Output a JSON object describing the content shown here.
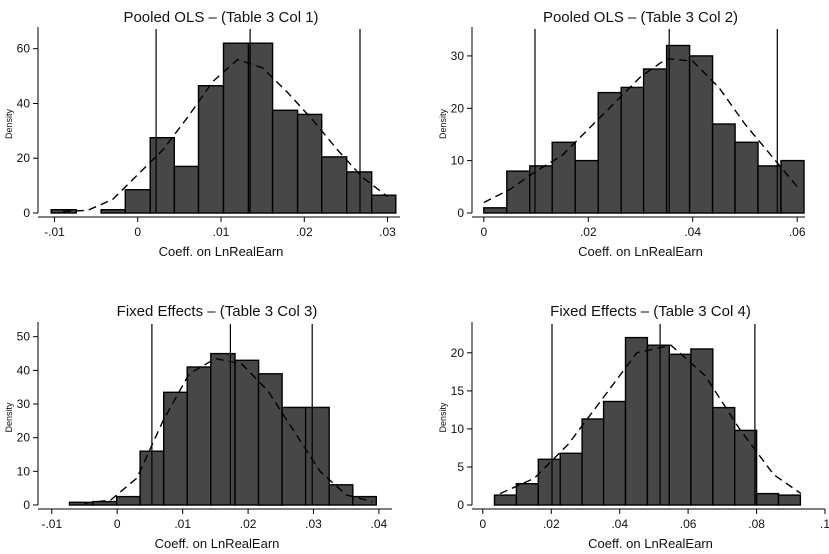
{
  "chart_data": [
    {
      "type": "bar",
      "title": "Pooled OLS – (Table 3 Col 1)",
      "xlabel": "Coeff. on LnRealEarn",
      "ylabel": "Density",
      "xlim": [
        -0.0115,
        0.0315
      ],
      "ylim": [
        0,
        65
      ],
      "xticks": [
        -0.01,
        0,
        0.01,
        0.02,
        0.03
      ],
      "xtick_labels": [
        "-.01",
        "0",
        ".01",
        ".02",
        ".03"
      ],
      "yticks": [
        0,
        20,
        40,
        60
      ],
      "ytick_labels": [
        "0",
        "20",
        "40",
        "60"
      ],
      "bin_edges": [
        -0.0104,
        -0.0074,
        -0.0044,
        -0.0015,
        0.0015,
        0.0044,
        0.0073,
        0.0103,
        0.0133,
        0.0162,
        0.0192,
        0.0221,
        0.0251,
        0.0281,
        0.031
      ],
      "values": [
        1.2,
        0,
        1.2,
        8.5,
        27.5,
        17,
        46.5,
        62,
        62,
        37.5,
        36,
        20.5,
        15,
        6.5
      ],
      "vlines": [
        0.0022,
        0.0135,
        0.0267
      ],
      "density_curve": {
        "x": [
          -0.009,
          -0.006,
          -0.003,
          0,
          0.003,
          0.006,
          0.009,
          0.012,
          0.015,
          0.018,
          0.021,
          0.024,
          0.027,
          0.03
        ],
        "y": [
          0.5,
          1,
          5,
          14,
          23,
          35,
          48,
          56,
          53,
          44,
          34,
          23,
          13,
          6
        ]
      }
    },
    {
      "type": "bar",
      "title": "Pooled OLS – (Table 3 Col 2)",
      "xlabel": "Coeff. on LnRealEarn",
      "ylabel": "Density",
      "xlim": [
        -0.0015,
        0.0615
      ],
      "ylim": [
        0,
        34
      ],
      "xticks": [
        0,
        0.02,
        0.04,
        0.06
      ],
      "xtick_labels": [
        "0",
        ".02",
        ".04",
        ".06"
      ],
      "yticks": [
        0,
        10,
        20,
        30
      ],
      "ytick_labels": [
        "0",
        "10",
        "20",
        "30"
      ],
      "bin_edges": [
        0.0,
        0.0044,
        0.0088,
        0.0131,
        0.0175,
        0.0219,
        0.0263,
        0.0306,
        0.035,
        0.0394,
        0.0438,
        0.0481,
        0.0525,
        0.0569,
        0.0613
      ],
      "values": [
        1,
        8,
        9,
        13.5,
        10,
        23,
        24,
        27.5,
        32,
        30,
        17,
        13.5,
        9,
        10
      ],
      "vlines": [
        0.0098,
        0.0355,
        0.0562
      ],
      "density_curve": {
        "x": [
          0,
          0.005,
          0.01,
          0.015,
          0.02,
          0.025,
          0.03,
          0.035,
          0.04,
          0.045,
          0.05,
          0.055,
          0.06
        ],
        "y": [
          2,
          4.5,
          8,
          11,
          16,
          21,
          26,
          29.5,
          29,
          24,
          17,
          11,
          5
        ]
      }
    },
    {
      "type": "bar",
      "title": "Fixed Effects – (Table 3 Col 3)",
      "xlabel": "Coeff. on LnRealEarn",
      "ylabel": "Density",
      "xlim": [
        -0.0115,
        0.042
      ],
      "ylim": [
        0,
        52
      ],
      "xticks": [
        -0.01,
        0,
        0.01,
        0.02,
        0.03,
        0.04
      ],
      "xtick_labels": [
        "-.01",
        "0",
        ".01",
        ".02",
        ".03",
        ".04"
      ],
      "yticks": [
        0,
        10,
        20,
        30,
        40,
        50
      ],
      "ytick_labels": [
        "0",
        "10",
        "20",
        "30",
        "40",
        "50"
      ],
      "bin_edges": [
        -0.0073,
        -0.0037,
        -0.0001,
        0.0035,
        0.0071,
        0.0107,
        0.0143,
        0.018,
        0.0216,
        0.0252,
        0.0288,
        0.0324,
        0.036,
        0.0396
      ],
      "values": [
        0.8,
        1,
        2.5,
        16,
        33.5,
        41,
        45,
        43,
        39,
        29,
        29,
        6,
        2.5,
        1.2
      ],
      "vlines": [
        0.0053,
        0.0173,
        0.0298
      ],
      "density_curve": {
        "x": [
          -0.005,
          -0.001,
          0.003,
          0.007,
          0.011,
          0.015,
          0.019,
          0.023,
          0.027,
          0.031,
          0.035,
          0.039
        ],
        "y": [
          0.5,
          1.5,
          8,
          25,
          39,
          43.5,
          42,
          34,
          22,
          10,
          3,
          1
        ]
      }
    },
    {
      "type": "bar",
      "title": "Fixed Effects – (Table 3 Col 4)",
      "xlabel": "Coeff. on LnRealEarn",
      "ylabel": "Density",
      "xlim": [
        -0.002,
        0.1
      ],
      "ylim": [
        0,
        23
      ],
      "xticks": [
        0,
        0.02,
        0.04,
        0.06,
        0.08,
        0.1
      ],
      "xtick_labels": [
        "0",
        ".02",
        ".04",
        ".06",
        ".08",
        ".1"
      ],
      "yticks": [
        0,
        5,
        10,
        15,
        20
      ],
      "ytick_labels": [
        "0",
        "5",
        "10",
        "15",
        "20"
      ],
      "bin_edges": [
        0.0034,
        0.0098,
        0.0162,
        0.0226,
        0.029,
        0.0353,
        0.0417,
        0.0481,
        0.0545,
        0.0608,
        0.0672,
        0.0736,
        0.08,
        0.0864,
        0.0928
      ],
      "values": [
        1.3,
        2.8,
        6,
        6.8,
        11.3,
        13.6,
        22,
        21,
        19.8,
        20.5,
        12.8,
        9.8,
        1.5,
        1.3
      ],
      "vlines": [
        0.0202,
        0.0518,
        0.0795
      ],
      "density_curve": {
        "x": [
          0.005,
          0.015,
          0.025,
          0.035,
          0.045,
          0.055,
          0.065,
          0.075,
          0.085,
          0.093
        ],
        "y": [
          1.5,
          3.5,
          8,
          14,
          20,
          21,
          17,
          10,
          4,
          1.5
        ]
      }
    }
  ]
}
